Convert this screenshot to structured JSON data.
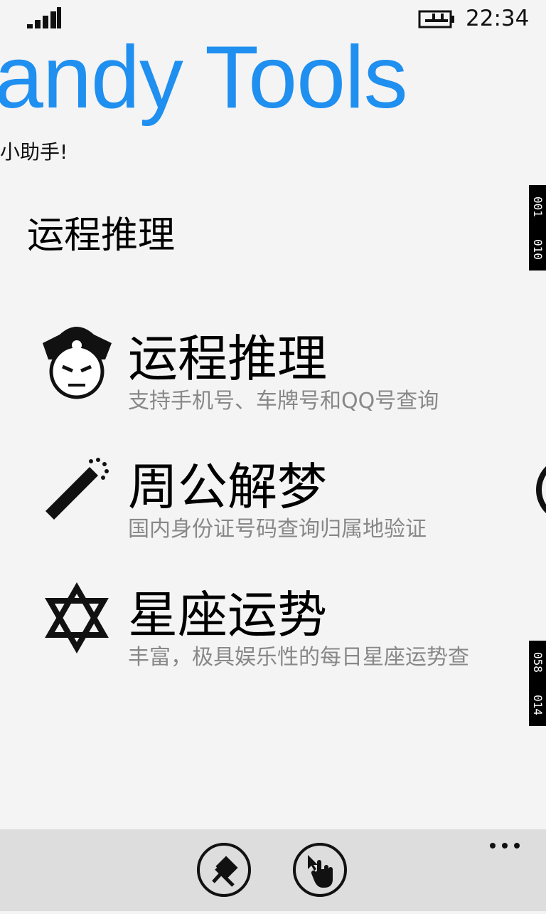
{
  "status_bar": {
    "time": "22:34"
  },
  "header": {
    "app_title": "andy Tools",
    "subtitle": "小助手!"
  },
  "pivot": {
    "header": "运程推理"
  },
  "items": [
    {
      "title": "运程推理",
      "subtitle": "支持手机号、车牌号和QQ号查询"
    },
    {
      "title": "周公解梦",
      "subtitle": "国内身份证号码查询归属地验证"
    },
    {
      "title": "星座运势",
      "subtitle": "丰富，极具娱乐性的每日星座运势查"
    }
  ],
  "side_tags": [
    [
      "001",
      "010"
    ],
    [
      "058",
      "014"
    ]
  ]
}
